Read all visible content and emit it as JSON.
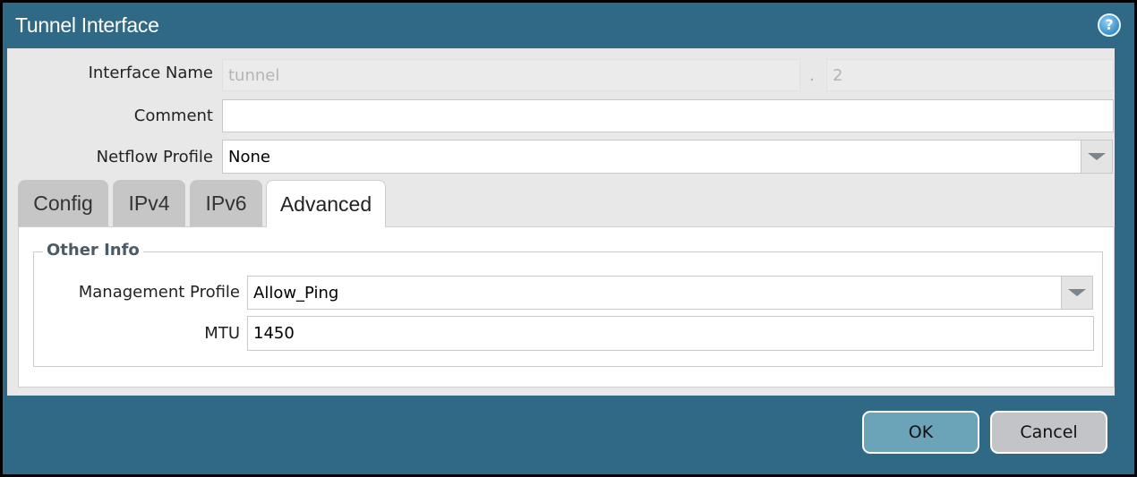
{
  "dialog": {
    "title": "Tunnel Interface",
    "help_icon": "help-icon"
  },
  "fields": {
    "interface_name": {
      "label": "Interface Name",
      "value": "tunnel",
      "separator": ".",
      "suffix": "2"
    },
    "comment": {
      "label": "Comment",
      "value": ""
    },
    "netflow_profile": {
      "label": "Netflow Profile",
      "value": "None"
    }
  },
  "tabs": [
    {
      "label": "Config"
    },
    {
      "label": "IPv4"
    },
    {
      "label": "IPv6"
    },
    {
      "label": "Advanced",
      "active": true
    }
  ],
  "other_info": {
    "legend": "Other Info",
    "management_profile": {
      "label": "Management Profile",
      "value": "Allow_Ping"
    },
    "mtu": {
      "label": "MTU",
      "value": "1450"
    }
  },
  "buttons": {
    "ok": "OK",
    "cancel": "Cancel"
  },
  "colors": {
    "titlebar": "#306986",
    "ok": "#6ba4b8",
    "cancel": "#c2c4c8"
  }
}
